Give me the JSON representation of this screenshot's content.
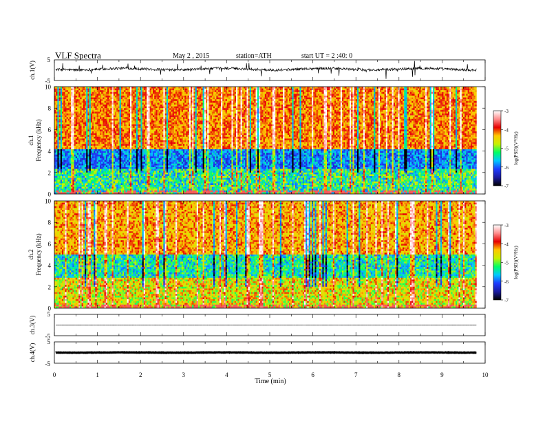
{
  "header": {
    "title": "VLF Spectra",
    "date": "May 2 , 2015",
    "station": "station=ATH",
    "start": "start UT = 2 :40: 0"
  },
  "colors": {
    "frame": "#000000",
    "trace": "#000000",
    "colormap": [
      "#000000",
      "#1a1aa0",
      "#1e3cff",
      "#00c8ff",
      "#00ff64",
      "#c8f000",
      "#ffc800",
      "#e60000",
      "#ff8c8c",
      "#ffffff"
    ]
  },
  "chart_data": {
    "type": "heatmap",
    "xlabel": "Time (min)",
    "xlim": [
      0,
      10
    ],
    "xticks": [
      "0",
      "1",
      "2",
      "3",
      "4",
      "5",
      "6",
      "7",
      "8",
      "9",
      "10"
    ],
    "data_end_min": 9.8,
    "panels": [
      {
        "id": "ch1-waveform",
        "kind": "waveform",
        "ylabel": "ch.1(V)",
        "ylim": [
          -5,
          5
        ],
        "ytick_labels": [
          "5",
          "-5"
        ],
        "baseline": 0.5,
        "noise_amplitude": 2.5,
        "spikes": true
      },
      {
        "id": "ch1-spectrogram",
        "kind": "spectrogram",
        "ylabel_top": "ch.1",
        "ylabel": "Frequency (kHz)",
        "ylim": [
          0,
          10
        ],
        "ytick_labels": [
          "0",
          "2",
          "4",
          "6",
          "8",
          "10"
        ],
        "colorbar": {
          "label": "log(PSD)(V²/Hz)",
          "range": [
            -7,
            -3
          ],
          "tick_labels": [
            "-3",
            "-4",
            "-5",
            "-6",
            "-7"
          ]
        }
      },
      {
        "id": "ch2-spectrogram",
        "kind": "spectrogram",
        "ylabel_top": "ch.2",
        "ylabel": "Frequency (kHz)",
        "ylim": [
          0,
          10
        ],
        "ytick_labels": [
          "0",
          "2",
          "4",
          "6",
          "8",
          "10"
        ],
        "colorbar": {
          "label": "log(PSD)(V²/Hz)",
          "range": [
            -7,
            -3
          ],
          "tick_labels": [
            "-3",
            "-4",
            "-5",
            "-6",
            "-7"
          ]
        }
      },
      {
        "id": "ch3-waveform",
        "kind": "waveform",
        "ylabel": "ch.3(V)",
        "ylim": [
          -5,
          5
        ],
        "ytick_labels": [
          "5",
          "-5"
        ],
        "baseline": 0,
        "noise_amplitude": 0.15,
        "spikes": false
      },
      {
        "id": "ch4-waveform",
        "kind": "waveform",
        "ylabel": "ch.4(V)",
        "ylim": [
          -5,
          5
        ],
        "ytick_labels": [
          "5",
          "-5"
        ],
        "baseline": 0,
        "noise_amplitude": 0.35,
        "spikes": false
      }
    ]
  }
}
